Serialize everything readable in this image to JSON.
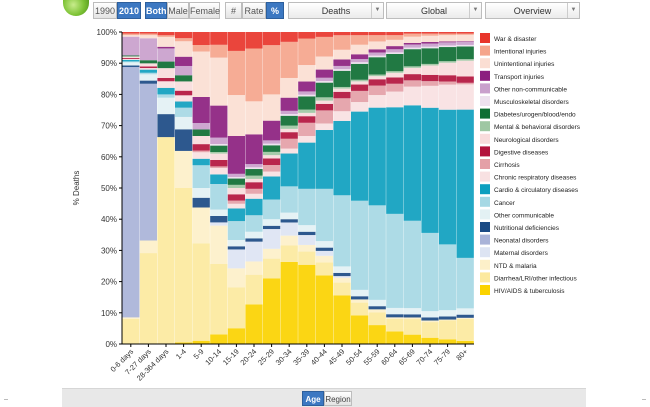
{
  "toolbar": {
    "years": [
      "1990",
      "2010"
    ],
    "selected_year": "2010",
    "sex": [
      "Both",
      "Male",
      "Female"
    ],
    "selected_sex": "Both",
    "units": [
      "#",
      "Rate",
      "%"
    ],
    "selected_unit": "%",
    "measure": "Deaths",
    "location": "Global",
    "view": "Overview"
  },
  "bottom_tabs": [
    "Age",
    "Region"
  ],
  "selected_bottom_tab": "Age",
  "colors": {
    "active_button": "#3c78c2"
  },
  "legend": [
    {
      "label": "War & disaster",
      "color": "#e8352b"
    },
    {
      "label": "Intentional injuries",
      "color": "#f5a58c"
    },
    {
      "label": "Unintentional injuries",
      "color": "#fbded3"
    },
    {
      "label": "Transport injuries",
      "color": "#8c1f7f"
    },
    {
      "label": "Other non-communicable",
      "color": "#c9a0cc"
    },
    {
      "label": "Musculoskeletal disorders",
      "color": "#ede1ee"
    },
    {
      "label": "Diabetes/urogen/blood/endo",
      "color": "#0e6e33"
    },
    {
      "label": "Mental & behavioral disorders",
      "color": "#9ec7a3"
    },
    {
      "label": "Neurological disorders",
      "color": "#f8dcdc"
    },
    {
      "label": "Digestive diseases",
      "color": "#b3133d"
    },
    {
      "label": "Cirrhosis",
      "color": "#e4a0a7"
    },
    {
      "label": "Chronic respiratory diseases",
      "color": "#f8e1e2"
    },
    {
      "label": "Cardio & circulatory diseases",
      "color": "#0e9fbf"
    },
    {
      "label": "Cancer",
      "color": "#a6d8e4"
    },
    {
      "label": "Other communicable",
      "color": "#e3f1f4"
    },
    {
      "label": "Nutritional deficiencies",
      "color": "#1b4a84"
    },
    {
      "label": "Neonatal disorders",
      "color": "#a9b3d8"
    },
    {
      "label": "Maternal disorders",
      "color": "#dde4f3"
    },
    {
      "label": "NTD & malaria",
      "color": "#fdf0c9"
    },
    {
      "label": "Diarrhea/LRI/other infectious",
      "color": "#fce99e"
    },
    {
      "label": "HIV/AIDS & tuberculosis",
      "color": "#fbd300"
    }
  ],
  "chart_data": {
    "type": "bar",
    "stacked": "percent",
    "title": "",
    "xlabel": "",
    "ylabel": "% Deaths",
    "ylim": [
      0,
      100
    ],
    "y_ticks": [
      "0%",
      "10%",
      "20%",
      "30%",
      "40%",
      "50%",
      "60%",
      "70%",
      "80%",
      "90%",
      "100%"
    ],
    "categories": [
      "0-6 days",
      "7-27 days",
      "28-364 days",
      "1-4",
      "5-9",
      "10-14",
      "15-19",
      "20-24",
      "25-29",
      "30-34",
      "35-39",
      "40-44",
      "45-49",
      "50-54",
      "55-59",
      "60-64",
      "65-69",
      "70-74",
      "75-79",
      "80+"
    ],
    "series": [
      {
        "name": "HIV/AIDS & tuberculosis",
        "values": [
          0,
          0,
          0,
          0.5,
          1,
          3,
          5,
          12,
          20,
          25,
          24,
          21,
          15,
          9,
          6,
          4,
          3,
          2,
          1.5,
          1
        ]
      },
      {
        "name": "Diarrhea/LRI/other infectious",
        "values": [
          8,
          29,
          63,
          50,
          30,
          22,
          13,
          9,
          6,
          5,
          4,
          4,
          4,
          4,
          4,
          4,
          5,
          5,
          6,
          7
        ]
      },
      {
        "name": "NTD & malaria",
        "values": [
          0.5,
          4,
          0,
          12,
          11,
          12,
          6,
          4,
          3,
          3,
          2,
          2,
          1.5,
          1,
          1,
          0.5,
          0.5,
          0.5,
          0.3,
          0.3
        ]
      },
      {
        "name": "Maternal disorders",
        "values": [
          0,
          0,
          0,
          0,
          0,
          1,
          6,
          6,
          6,
          4,
          3,
          1.5,
          0.5,
          0,
          0,
          0,
          0,
          0,
          0,
          0
        ]
      },
      {
        "name": "Neonatal disorders",
        "values": [
          80,
          50,
          0,
          0,
          0,
          0,
          0,
          0,
          0,
          0,
          0,
          0,
          0,
          0,
          0,
          0,
          0,
          0,
          0,
          0
        ]
      },
      {
        "name": "Nutritional deficiencies",
        "values": [
          0.5,
          1,
          7,
          7,
          3,
          2,
          1,
          1,
          1,
          1,
          1,
          1,
          1,
          1,
          1,
          1,
          1,
          1,
          1,
          1
        ]
      },
      {
        "name": "Other communicable",
        "values": [
          1,
          2,
          5,
          4,
          3,
          2,
          2,
          2,
          2,
          2,
          2,
          2,
          2,
          2,
          2,
          2,
          2,
          2,
          2,
          2
        ]
      },
      {
        "name": "Cancer",
        "values": [
          0.3,
          0.5,
          1,
          3,
          7,
          8,
          6,
          5,
          6,
          8,
          11,
          16,
          22,
          28,
          30,
          30,
          28,
          25,
          21,
          16
        ]
      },
      {
        "name": "Cardio & circulatory diseases",
        "values": [
          0.5,
          1,
          2,
          2,
          2,
          3,
          4,
          5,
          7,
          10,
          14,
          18,
          23,
          28,
          31,
          34,
          37,
          40,
          43,
          47
        ]
      },
      {
        "name": "Chronic respiratory diseases",
        "values": [
          0.3,
          0.5,
          2,
          2,
          2,
          2,
          1.5,
          1.5,
          1.5,
          1.5,
          2,
          2,
          3,
          3,
          4,
          5,
          6,
          7,
          8,
          8
        ]
      },
      {
        "name": "Cirrhosis",
        "values": [
          0,
          0,
          0,
          0,
          0.5,
          0.5,
          1,
          1.5,
          2,
          3,
          4,
          4,
          4,
          3.5,
          3,
          2.5,
          2,
          1.5,
          1,
          0.5
        ]
      },
      {
        "name": "Digestive diseases",
        "values": [
          0.3,
          0.5,
          1,
          1.5,
          2,
          2,
          2,
          2,
          2,
          2,
          2,
          2,
          2,
          2,
          2,
          2,
          2,
          2,
          2,
          2
        ]
      },
      {
        "name": "Neurological disorders",
        "values": [
          0.5,
          1,
          3,
          3,
          2.5,
          2,
          2,
          1,
          1,
          1,
          1,
          1,
          1,
          1,
          1,
          1.5,
          2,
          3,
          4,
          5
        ]
      },
      {
        "name": "Mental & behavioral disorders",
        "values": [
          0,
          0,
          0,
          0,
          0,
          0.5,
          1,
          1,
          1,
          1,
          1,
          1,
          0.5,
          0.5,
          0.5,
          0.5,
          0.5,
          0.5,
          0.5,
          0.5
        ]
      },
      {
        "name": "Diabetes/urogen/blood/endo",
        "values": [
          0.3,
          1,
          2,
          2,
          2,
          2,
          2,
          2,
          2,
          3,
          4,
          4.5,
          5,
          5,
          5.5,
          5.5,
          5.5,
          5,
          4.5,
          4
        ]
      },
      {
        "name": "Musculoskeletal disorders",
        "values": [
          0,
          0,
          0,
          0,
          0,
          0.5,
          0.5,
          0.5,
          0.5,
          0.5,
          0.5,
          0.5,
          0.5,
          0.5,
          0.5,
          0.5,
          0.5,
          0.5,
          0.5,
          0.5
        ]
      },
      {
        "name": "Other non-communicable",
        "values": [
          6,
          7,
          4,
          3,
          2,
          2,
          1,
          1,
          1,
          1,
          1,
          1,
          1,
          1,
          1,
          1,
          1,
          1,
          1,
          1
        ]
      },
      {
        "name": "Transport injuries",
        "values": [
          0,
          0,
          0.5,
          3,
          8,
          10,
          12,
          9,
          6,
          4,
          3,
          2.5,
          2,
          1.5,
          1,
          1,
          0.5,
          0.5,
          0.3,
          0.2
        ]
      },
      {
        "name": "Unintentional injuries",
        "values": [
          0.5,
          1,
          3,
          5,
          14,
          15,
          13,
          10,
          8,
          6,
          5,
          4,
          3,
          3,
          2.5,
          2,
          2,
          2,
          2,
          2
        ]
      },
      {
        "name": "Intentional injuries",
        "values": [
          0.5,
          0.5,
          0.5,
          1,
          2,
          4,
          14,
          16,
          15,
          11,
          8,
          6,
          4.5,
          3,
          2,
          1.5,
          1,
          0.7,
          0.5,
          0.4
        ]
      },
      {
        "name": "War & disaster",
        "values": [
          0.5,
          0.5,
          1,
          2,
          4,
          4,
          6,
          5,
          4,
          3,
          2,
          1.5,
          1,
          1,
          1,
          1,
          0.5,
          0.5,
          0.5,
          0.5
        ]
      }
    ]
  }
}
